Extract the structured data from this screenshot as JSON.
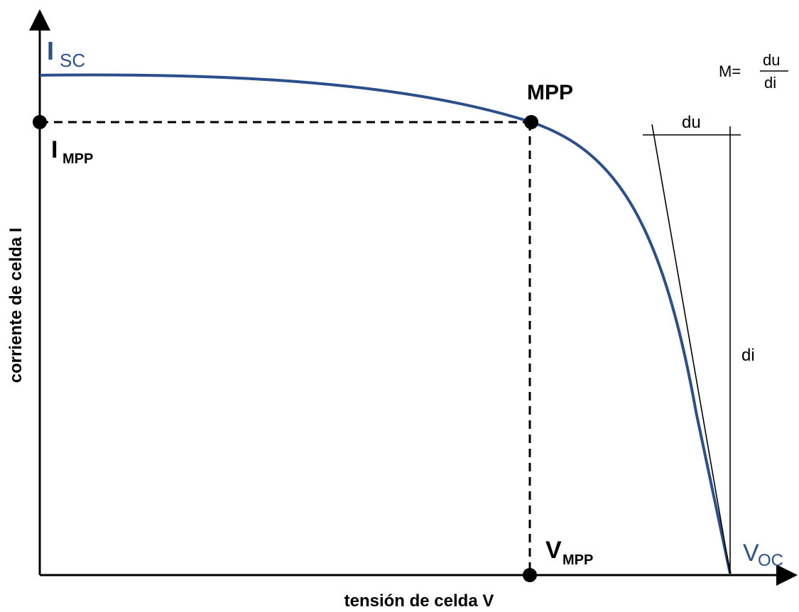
{
  "labels": {
    "isc_main": "I",
    "isc_sub": "SC",
    "impp_main": "I",
    "impp_sub": "MPP",
    "mpp": "MPP",
    "vmpp_main": "V",
    "vmpp_sub": "MPP",
    "voc_main": "V",
    "voc_sub": "OC",
    "du": "du",
    "di": "di",
    "formula_lhs": "M=",
    "formula_num": "du",
    "formula_den": "di",
    "y_axis": "corriente de celda I",
    "x_axis": "tensión de celda V"
  },
  "colors": {
    "curve": "#2b4f8a",
    "axis": "#000000",
    "dashed": "#000000"
  }
}
